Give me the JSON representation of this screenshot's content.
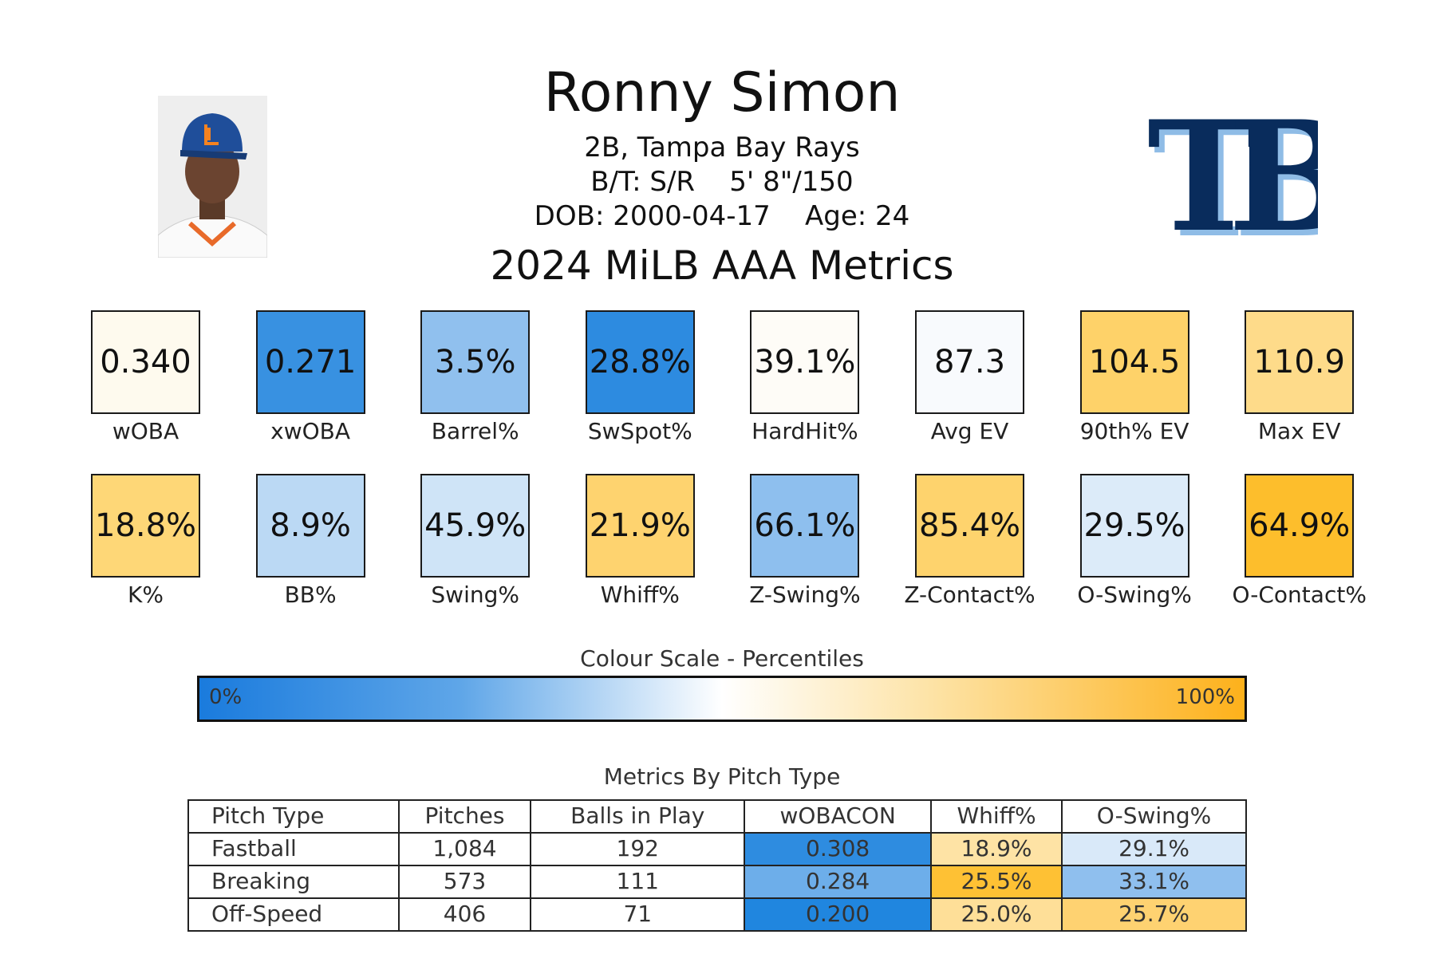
{
  "header": {
    "name": "Ronny Simon",
    "position_team": "2B, Tampa Bay Rays",
    "bats_throws": "B/T: S/R",
    "height_weight": "5' 8\"/150",
    "dob": "DOB: 2000-04-17",
    "age": "Age: 24",
    "subtitle": "2024 MiLB AAA Metrics",
    "logo_text": "TB"
  },
  "tiles": [
    {
      "label": "wOBA",
      "value": "0.340",
      "color": "#fefaee"
    },
    {
      "label": "xwOBA",
      "value": "0.271",
      "color": "#3891e1"
    },
    {
      "label": "Barrel%",
      "value": "3.5%",
      "color": "#90c0ee"
    },
    {
      "label": "SwSpot%",
      "value": "28.8%",
      "color": "#2d8be0"
    },
    {
      "label": "HardHit%",
      "value": "39.1%",
      "color": "#fefcf7"
    },
    {
      "label": "Avg EV",
      "value": "87.3",
      "color": "#f8fafd"
    },
    {
      "label": "90th% EV",
      "value": "104.5",
      "color": "#fed269"
    },
    {
      "label": "Max EV",
      "value": "110.9",
      "color": "#fedb8a"
    },
    {
      "label": "K%",
      "value": "18.8%",
      "color": "#fed777"
    },
    {
      "label": "BB%",
      "value": "8.9%",
      "color": "#bbd9f4"
    },
    {
      "label": "Swing%",
      "value": "45.9%",
      "color": "#cfe4f7"
    },
    {
      "label": "Whiff%",
      "value": "21.9%",
      "color": "#fed36f"
    },
    {
      "label": "Z-Swing%",
      "value": "66.1%",
      "color": "#8ebfee"
    },
    {
      "label": "Z-Contact%",
      "value": "85.4%",
      "color": "#fed36d"
    },
    {
      "label": "O-Swing%",
      "value": "29.5%",
      "color": "#dcebf9"
    },
    {
      "label": "O-Contact%",
      "value": "64.9%",
      "color": "#fdbe2c"
    }
  ],
  "scale": {
    "title": "Colour Scale - Percentiles",
    "min": "0%",
    "max": "100%"
  },
  "table": {
    "title": "Metrics By Pitch Type",
    "headers": [
      "Pitch Type",
      "Pitches",
      "Balls in Play",
      "wOBACON",
      "Whiff%",
      "O-Swing%"
    ],
    "rows": [
      {
        "cells": [
          "Fastball",
          "1,084",
          "192",
          "0.308",
          "18.9%",
          "29.1%"
        ],
        "colors": [
          "#fff",
          "#fff",
          "#fff",
          "#2e8ce0",
          "#fee3a5",
          "#d9e9f9"
        ]
      },
      {
        "cells": [
          "Breaking",
          "573",
          "111",
          "0.284",
          "25.5%",
          "33.1%"
        ],
        "colors": [
          "#fff",
          "#fff",
          "#fff",
          "#6daeea",
          "#fec134",
          "#8fbfee"
        ]
      },
      {
        "cells": [
          "Off-Speed",
          "406",
          "71",
          "0.200",
          "25.0%",
          "25.7%"
        ],
        "colors": [
          "#fff",
          "#fff",
          "#fff",
          "#2086df",
          "#fedf98",
          "#fed271"
        ]
      }
    ]
  }
}
